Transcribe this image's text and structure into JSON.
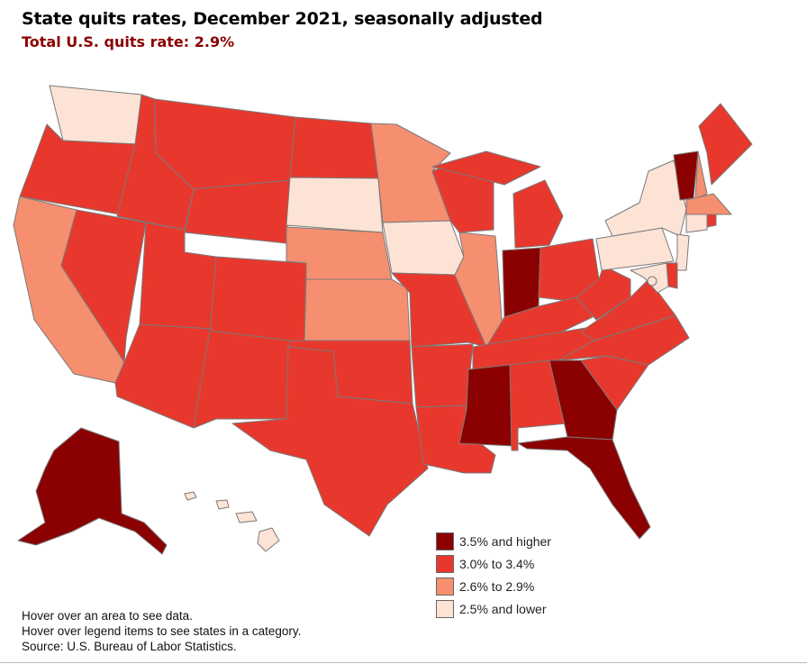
{
  "header": {
    "title": "State quits rates, December 2021, seasonally adjusted",
    "subtitle": "Total U.S. quits rate: 2.9%"
  },
  "legend": {
    "items": [
      {
        "label": "3.5% and higher",
        "color": "#8b0000",
        "category": "high"
      },
      {
        "label": "3.0% to 3.4%",
        "color": "#e8382d",
        "category": "midhigh"
      },
      {
        "label": "2.6% to 2.9%",
        "color": "#f58f6f",
        "category": "mid"
      },
      {
        "label": "2.5% and lower",
        "color": "#fde3d6",
        "category": "low"
      }
    ]
  },
  "map": {
    "states": {
      "WA": "low",
      "OR": "midhigh",
      "CA": "mid",
      "NV": "midhigh",
      "ID": "midhigh",
      "MT": "midhigh",
      "WY": "midhigh",
      "UT": "midhigh",
      "AZ": "midhigh",
      "CO": "midhigh",
      "NM": "midhigh",
      "ND": "midhigh",
      "SD": "low",
      "NE": "mid",
      "KS": "mid",
      "OK": "midhigh",
      "TX": "midhigh",
      "MN": "mid",
      "IA": "low",
      "MO": "midhigh",
      "AR": "midhigh",
      "LA": "midhigh",
      "WI": "midhigh",
      "IL": "mid",
      "MI": "midhigh",
      "IN": "high",
      "OH": "midhigh",
      "KY": "midhigh",
      "TN": "midhigh",
      "MS": "high",
      "AL": "midhigh",
      "GA": "high",
      "FL": "high",
      "SC": "midhigh",
      "NC": "midhigh",
      "VA": "midhigh",
      "WV": "midhigh",
      "PA": "low",
      "NY": "low",
      "VT": "high",
      "NH": "mid",
      "ME": "midhigh",
      "MA": "mid",
      "CT": "low",
      "RI": "midhigh",
      "NJ": "low",
      "DE": "midhigh",
      "MD": "low",
      "DC": "low",
      "AK": "high",
      "HI": "low"
    }
  },
  "notes": {
    "line1": "Hover over an area to see data.",
    "line2": "Hover over legend items to see states in a category.",
    "line3": "Source: U.S. Bureau of Labor Statistics."
  }
}
